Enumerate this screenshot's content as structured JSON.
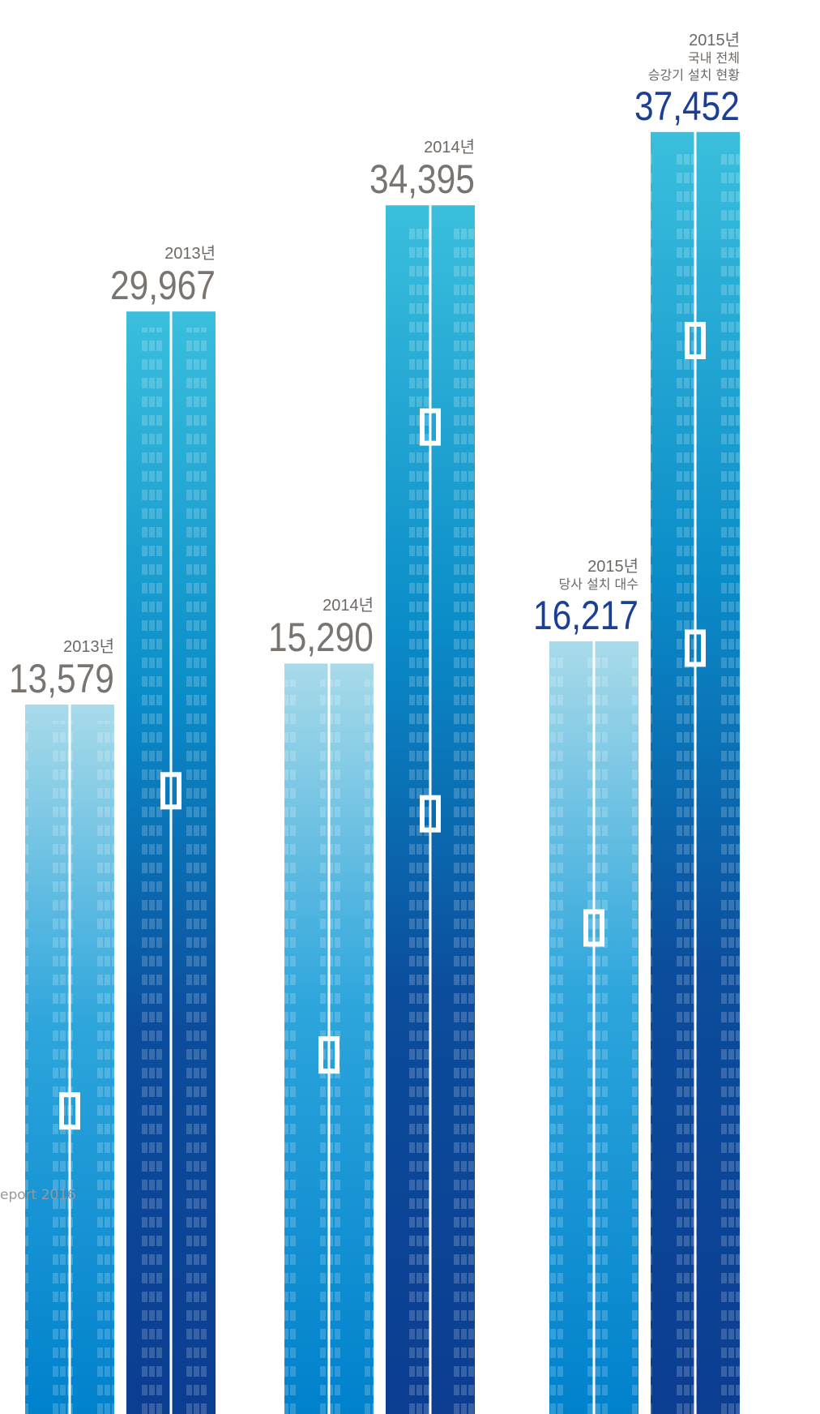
{
  "chart_data": {
    "type": "bar",
    "categories": [
      "2013년",
      "2014년",
      "2015년"
    ],
    "series": [
      {
        "name": "당사 설치 대수",
        "values": [
          13579,
          15290,
          16217
        ],
        "value_labels": [
          "13,579",
          "15,290",
          "16,217"
        ],
        "color": "#0a8fd3"
      },
      {
        "name": "국내 전체\n승강기 설치 현황",
        "values": [
          29967,
          34395,
          37452
        ],
        "value_labels": [
          "29,967",
          "34,395",
          "37,452"
        ],
        "color": "#0b3e93"
      }
    ],
    "ylim": [
      -16000,
      39000
    ],
    "footer": "eport 2016"
  }
}
